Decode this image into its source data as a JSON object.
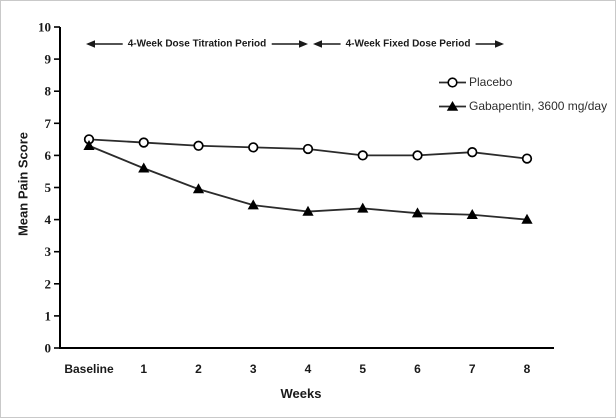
{
  "chart_data": {
    "type": "line",
    "title": "",
    "xlabel": "Weeks",
    "ylabel": "Mean Pain Score",
    "categories": [
      "Baseline",
      "1",
      "2",
      "3",
      "4",
      "5",
      "6",
      "7",
      "8"
    ],
    "ylim": [
      0,
      10
    ],
    "yticks": [
      0,
      1,
      2,
      3,
      4,
      5,
      6,
      7,
      8,
      9,
      10
    ],
    "grid": false,
    "legend_position": "upper-right",
    "line_color": "#2b2b2b",
    "marker_color": "#000000",
    "series": [
      {
        "name": "Placebo",
        "marker": "open-circle",
        "values": [
          6.5,
          6.4,
          6.3,
          6.25,
          6.2,
          6.0,
          6.0,
          6.1,
          5.9
        ]
      },
      {
        "name": "Gabapentin, 3600 mg/day",
        "marker": "filled-triangle",
        "values": [
          6.3,
          5.6,
          4.95,
          4.45,
          4.25,
          4.35,
          4.2,
          4.15,
          4.0
        ]
      }
    ],
    "annotations": [
      {
        "label": "4-Week Dose Titration Period",
        "x_start": "Baseline",
        "x_end": "4"
      },
      {
        "label": "4-Week Fixed Dose Period",
        "x_start": "4",
        "x_end": "8"
      }
    ]
  }
}
